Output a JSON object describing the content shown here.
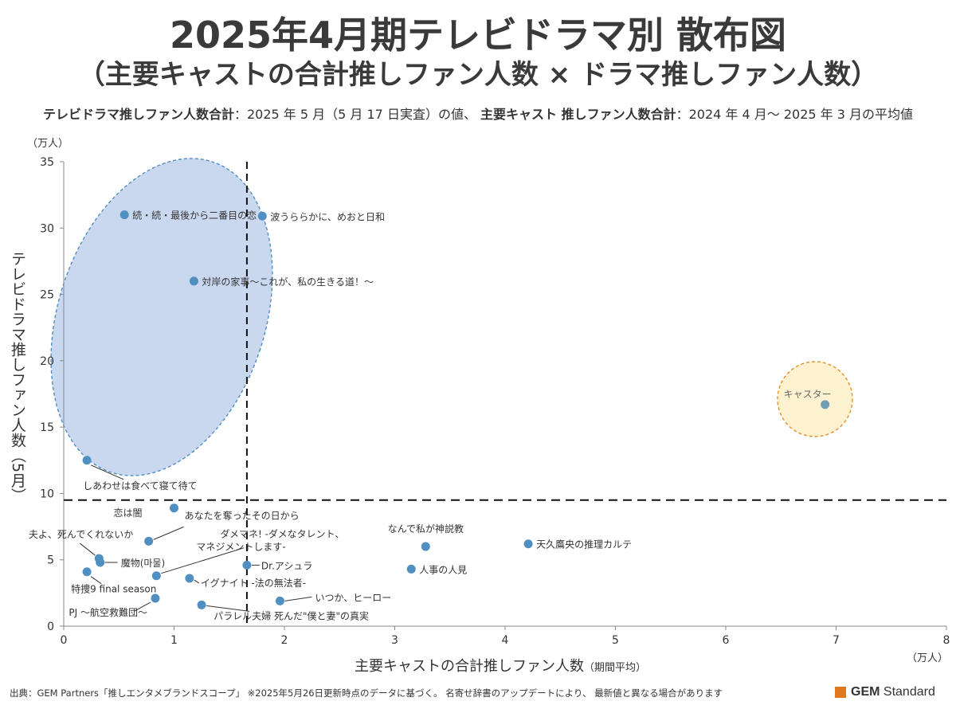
{
  "title_line1": "2025年4月期テレビドラマ別 散布図",
  "title_line2": "（主要キャストの合計推しファン人数 × ドラマ推しファン人数）",
  "subtitle": {
    "bold1": "テレビドラマ推しファン人数合計",
    "text1": "：2025 年 5 月（5 月 17 日実査）の値、 ",
    "bold2": "主要キャスト 推しファン人数合計",
    "text2": "：2024 年 4 月～ 2025 年 3 月の平均値"
  },
  "footer": "出典：GEM Partners「推しエンタメブランドスコープ」 ※2025年5月26日更新時点のデータに基づく。 名寄せ辞書のアップデートにより、 最新値と異なる場合があります",
  "brand": {
    "bold": "GEM",
    "rest": " Standard",
    "color": "#e2781e"
  },
  "chart_data": {
    "type": "scatter",
    "xlabel": "主要キャストの合計推しファン人数",
    "xlabel_note": "（期間平均）",
    "ylabel": "テレビドラマ推しファン人数（5月）",
    "x_unit": "（万人）",
    "y_unit": "（万人）",
    "xlim": [
      0,
      8
    ],
    "ylim": [
      0,
      35
    ],
    "x_ticks": [
      0,
      1,
      2,
      3,
      4,
      5,
      6,
      7,
      8
    ],
    "y_ticks": [
      0,
      5,
      10,
      15,
      20,
      25,
      30,
      35
    ],
    "reference_lines": {
      "x": 1.66,
      "y": 9.5
    },
    "point_color": "#4f8fc2",
    "highlight_group_color": "#c9d7ef",
    "outlier_group_color": "#fdf2d0",
    "outlier_label": "キャスター",
    "points": [
      {
        "label": "続・続・最後から二番目の恋",
        "x": 0.55,
        "y": 31.0
      },
      {
        "label": "波うららかに、めおと日和",
        "x": 1.8,
        "y": 30.9
      },
      {
        "label": "対岸の家事～これが、私の生きる道！～",
        "x": 1.18,
        "y": 26.0
      },
      {
        "label": "しあわせは食べて寝て待て",
        "x": 0.21,
        "y": 12.5
      },
      {
        "label": "恋は闇",
        "x": 1.0,
        "y": 8.9
      },
      {
        "label": "あなたを奪ったその日から",
        "x": 0.77,
        "y": 6.4
      },
      {
        "label": "夫よ、死んでくれないか",
        "x": 0.32,
        "y": 5.1
      },
      {
        "label": "魔物(마물)",
        "x": 0.33,
        "y": 4.8
      },
      {
        "label": "特捜9 final season",
        "x": 0.21,
        "y": 4.1
      },
      {
        "label": "PJ ～航空救難団～",
        "x": 0.83,
        "y": 2.1
      },
      {
        "label": "ダメマネ! -ダメなタレント、マネジメントします-",
        "x": 0.84,
        "y": 3.8
      },
      {
        "label": "Dr.アシュラ",
        "x": 1.66,
        "y": 4.6
      },
      {
        "label": "イグナイト -法の無法者-",
        "x": 1.14,
        "y": 3.6
      },
      {
        "label": "パラレル夫婦 死んだ\"僕と妻\"の真実",
        "x": 1.25,
        "y": 1.6
      },
      {
        "label": "いつか、ヒーロー",
        "x": 1.96,
        "y": 1.9
      },
      {
        "label": "なんで私が神説教",
        "x": 3.28,
        "y": 6.0
      },
      {
        "label": "人事の人見",
        "x": 3.15,
        "y": 4.3
      },
      {
        "label": "天久鷹央の推理カルテ",
        "x": 4.21,
        "y": 6.2
      },
      {
        "label": "キャスター",
        "x": 6.9,
        "y": 16.7
      }
    ]
  }
}
